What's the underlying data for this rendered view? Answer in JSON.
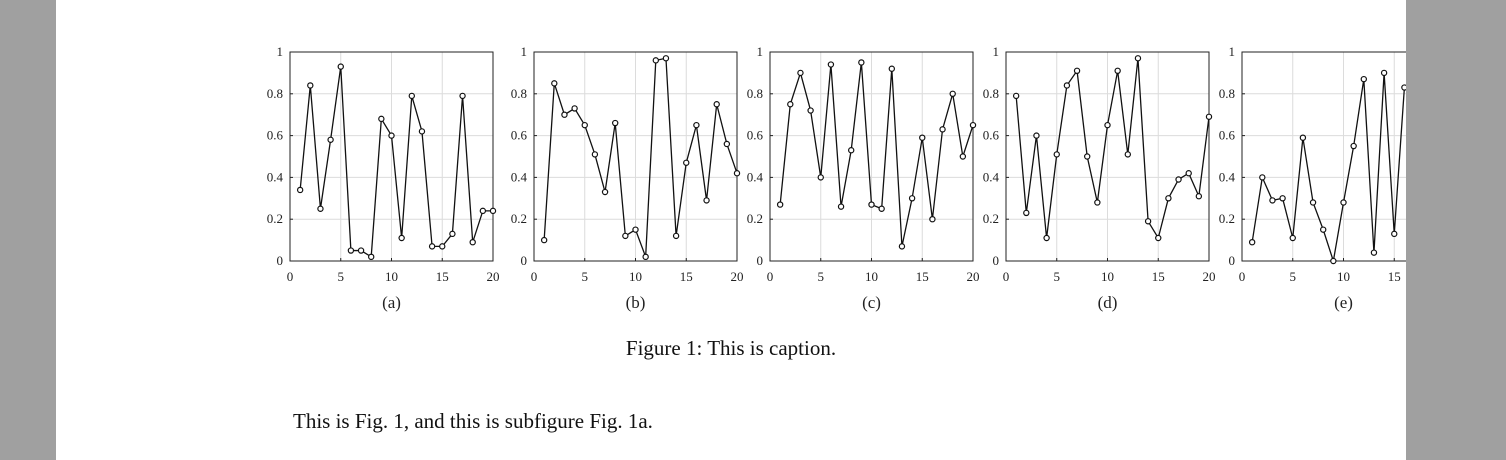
{
  "figure": {
    "caption": "Figure 1: This is caption.",
    "subfigure_labels": [
      "(a)",
      "(b)",
      "(c)",
      "(d)",
      "(e)"
    ]
  },
  "body_text": "This is Fig. 1, and this is subfigure Fig. 1a.",
  "chart_data": [
    {
      "type": "line",
      "label": "(a)",
      "x": [
        1,
        2,
        3,
        4,
        5,
        6,
        7,
        8,
        9,
        10,
        11,
        12,
        13,
        14,
        15,
        16,
        17,
        18,
        19,
        20
      ],
      "series": [
        {
          "values": [
            0.34,
            0.84,
            0.25,
            0.58,
            0.93,
            0.05,
            0.05,
            0.02,
            0.68,
            0.6,
            0.11,
            0.79,
            0.62,
            0.07,
            0.07,
            0.13,
            0.79,
            0.09,
            0.24,
            0.24
          ]
        }
      ],
      "xlim": [
        0,
        20
      ],
      "ylim": [
        0,
        1
      ],
      "xticks": [
        "0",
        "5",
        "10",
        "15",
        "20"
      ],
      "yticks": [
        "0",
        "0.2",
        "0.4",
        "0.6",
        "0.8",
        "1"
      ],
      "grid": true
    },
    {
      "type": "line",
      "label": "(b)",
      "x": [
        1,
        2,
        3,
        4,
        5,
        6,
        7,
        8,
        9,
        10,
        11,
        12,
        13,
        14,
        15,
        16,
        17,
        18,
        19,
        20
      ],
      "series": [
        {
          "values": [
            0.1,
            0.85,
            0.7,
            0.73,
            0.65,
            0.51,
            0.33,
            0.66,
            0.12,
            0.15,
            0.02,
            0.96,
            0.97,
            0.12,
            0.47,
            0.65,
            0.29,
            0.75,
            0.56,
            0.42
          ]
        }
      ],
      "xlim": [
        0,
        20
      ],
      "ylim": [
        0,
        1
      ],
      "xticks": [
        "0",
        "5",
        "10",
        "15",
        "20"
      ],
      "yticks": [
        "0",
        "0.2",
        "0.4",
        "0.6",
        "0.8",
        "1"
      ],
      "grid": true
    },
    {
      "type": "line",
      "label": "(c)",
      "x": [
        1,
        2,
        3,
        4,
        5,
        6,
        7,
        8,
        9,
        10,
        11,
        12,
        13,
        14,
        15,
        16,
        17,
        18,
        19,
        20
      ],
      "series": [
        {
          "values": [
            0.27,
            0.75,
            0.9,
            0.72,
            0.4,
            0.94,
            0.26,
            0.53,
            0.95,
            0.27,
            0.25,
            0.92,
            0.07,
            0.3,
            0.59,
            0.2,
            0.63,
            0.8,
            0.5,
            0.65
          ]
        }
      ],
      "xlim": [
        0,
        20
      ],
      "ylim": [
        0,
        1
      ],
      "xticks": [
        "0",
        "5",
        "10",
        "15",
        "20"
      ],
      "yticks": [
        "0",
        "0.2",
        "0.4",
        "0.6",
        "0.8",
        "1"
      ],
      "grid": true
    },
    {
      "type": "line",
      "label": "(d)",
      "x": [
        1,
        2,
        3,
        4,
        5,
        6,
        7,
        8,
        9,
        10,
        11,
        12,
        13,
        14,
        15,
        16,
        17,
        18,
        19,
        20
      ],
      "series": [
        {
          "values": [
            0.79,
            0.23,
            0.6,
            0.11,
            0.51,
            0.84,
            0.91,
            0.5,
            0.28,
            0.65,
            0.91,
            0.51,
            0.97,
            0.19,
            0.11,
            0.3,
            0.39,
            0.42,
            0.31,
            0.69
          ]
        }
      ],
      "xlim": [
        0,
        20
      ],
      "ylim": [
        0,
        1
      ],
      "xticks": [
        "0",
        "5",
        "10",
        "15",
        "20"
      ],
      "yticks": [
        "0",
        "0.2",
        "0.4",
        "0.6",
        "0.8",
        "1"
      ],
      "grid": true
    },
    {
      "type": "line",
      "label": "(e)",
      "x": [
        1,
        2,
        3,
        4,
        5,
        6,
        7,
        8,
        9,
        10,
        11,
        12,
        13,
        14,
        15,
        16
      ],
      "series": [
        {
          "values": [
            0.09,
            0.4,
            0.29,
            0.3,
            0.11,
            0.59,
            0.28,
            0.15,
            0.0,
            0.28,
            0.55,
            0.87,
            0.04,
            0.9,
            0.13,
            0.83
          ]
        }
      ],
      "xlim": [
        0,
        20
      ],
      "ylim": [
        0,
        1
      ],
      "xticks": [
        "0",
        "5",
        "10",
        "15"
      ],
      "yticks": [
        "0",
        "0.2",
        "0.4",
        "0.6",
        "0.8",
        "1"
      ],
      "grid": true
    }
  ]
}
